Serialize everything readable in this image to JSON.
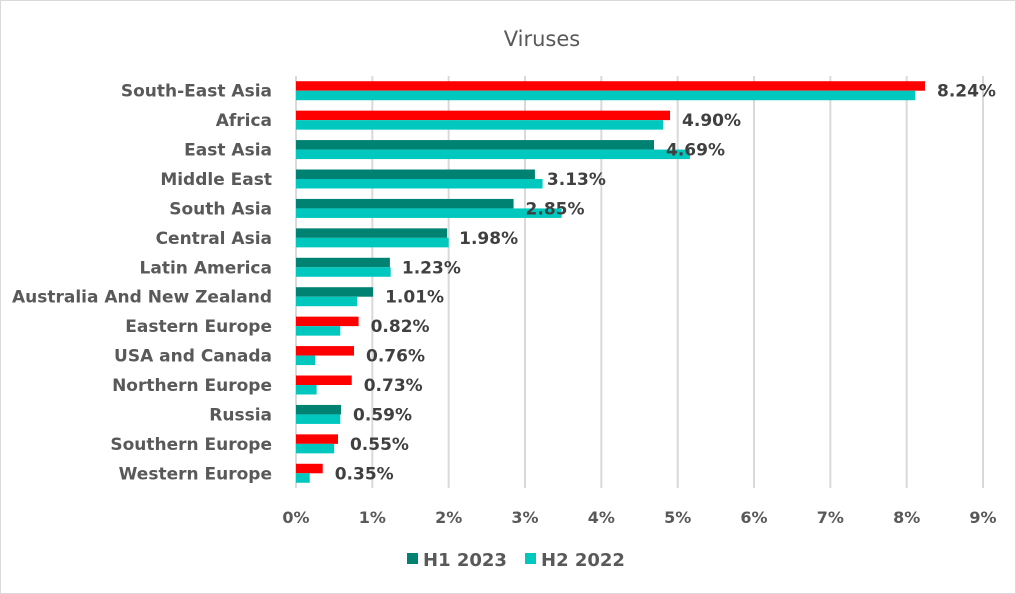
{
  "chart_data": {
    "type": "bar",
    "orientation": "horizontal",
    "title": "Viruses",
    "xlabel": "",
    "ylabel": "",
    "xlim": [
      0,
      9
    ],
    "x_unit": "%",
    "x_ticks": [
      "0%",
      "1%",
      "2%",
      "3%",
      "4%",
      "5%",
      "6%",
      "7%",
      "8%",
      "9%"
    ],
    "grid": "vertical",
    "legend_position": "bottom",
    "categories": [
      "South-East Asia",
      "Africa",
      "East Asia",
      "Middle East",
      "South Asia",
      "Central Asia",
      "Latin America",
      "Australia And New Zealand",
      "Eastern Europe",
      "USA and Canada",
      "Northern Europe",
      "Russia",
      "Southern Europe",
      "Western Europe"
    ],
    "series": [
      {
        "name": "H1 2023",
        "color": "#008272",
        "highlight_color": "#ff0000",
        "values": [
          8.24,
          4.9,
          4.69,
          3.13,
          2.85,
          1.98,
          1.23,
          1.01,
          0.82,
          0.76,
          0.73,
          0.59,
          0.55,
          0.35
        ],
        "highlighted": [
          true,
          true,
          false,
          false,
          false,
          false,
          false,
          false,
          true,
          true,
          true,
          false,
          true,
          true
        ],
        "labels": [
          "8.24%",
          "4.90%",
          "4.69%",
          "3.13%",
          "2.85%",
          "1.98%",
          "1.23%",
          "1.01%",
          "0.82%",
          "0.76%",
          "0.73%",
          "0.59%",
          "0.55%",
          "0.35%"
        ]
      },
      {
        "name": "H2 2022",
        "color": "#00c8bf",
        "values": [
          8.11,
          4.81,
          5.16,
          3.23,
          3.48,
          2.0,
          1.24,
          0.8,
          0.58,
          0.25,
          0.27,
          0.58,
          0.5,
          0.18
        ]
      }
    ]
  }
}
